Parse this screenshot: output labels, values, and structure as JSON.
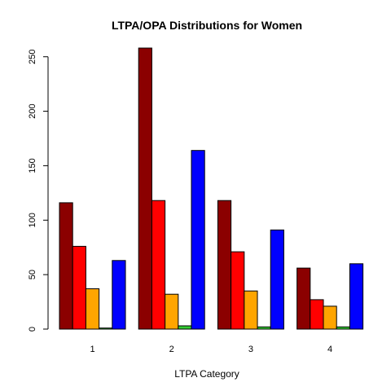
{
  "chart_data": {
    "type": "bar",
    "title": "LTPA/OPA Distributions for Women",
    "xlabel": "LTPA Category",
    "ylabel": "",
    "categories": [
      "1",
      "2",
      "3",
      "4"
    ],
    "ylim": [
      0,
      260
    ],
    "yticks": [
      "0",
      "50",
      "100",
      "150",
      "200",
      "250"
    ],
    "grid": false,
    "legend": "none",
    "series": [
      {
        "color": "#8B0000",
        "values": [
          116,
          258,
          118,
          56
        ]
      },
      {
        "color": "#FF0000",
        "values": [
          76,
          118,
          71,
          27
        ]
      },
      {
        "color": "#FFA500",
        "values": [
          37,
          32,
          35,
          21
        ]
      },
      {
        "color": "#32CD32",
        "values": [
          1,
          3,
          2,
          2
        ]
      },
      {
        "color": "#0000FF",
        "values": [
          63,
          164,
          91,
          60
        ]
      }
    ]
  }
}
